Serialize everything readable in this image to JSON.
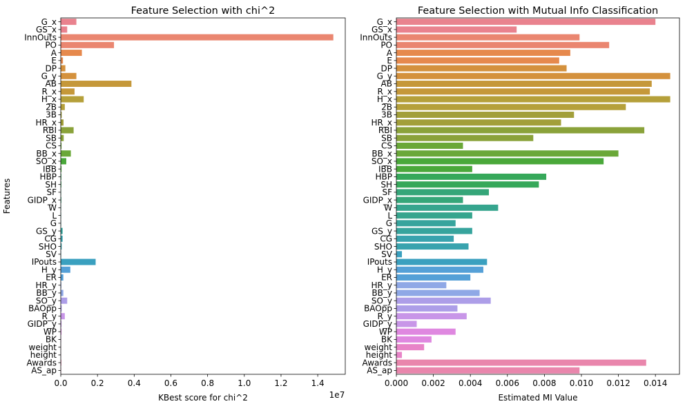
{
  "chart_data": [
    {
      "type": "bar",
      "orientation": "horizontal",
      "title": "Feature Selection with chi^2",
      "xlabel": "KBest score for chi^2",
      "ylabel": "Features",
      "x_offset_label": "1e7",
      "xlim": [
        0,
        1.55
      ],
      "x_ticks": [
        0.0,
        0.2,
        0.4,
        0.6,
        0.8,
        1.0,
        1.2,
        1.4
      ],
      "x_tick_labels": [
        "0.0",
        "0.2",
        "0.4",
        "0.6",
        "0.8",
        "1.0",
        "1.2",
        "1.4"
      ],
      "categories": [
        "G_x",
        "GS_x",
        "InnOuts",
        "PO",
        "A",
        "E",
        "DP",
        "G_y",
        "AB",
        "R_x",
        "H_x",
        "2B",
        "3B",
        "HR_x",
        "RBI",
        "SB",
        "CS",
        "BB_x",
        "SO_x",
        "IBB",
        "HBP",
        "SH",
        "SF",
        "GIDP_x",
        "W",
        "L",
        "G",
        "GS_y",
        "CG",
        "SHO",
        "SV",
        "IPouts",
        "H_y",
        "ER",
        "HR_y",
        "BB_y",
        "SO_y",
        "BAOpp",
        "R_y",
        "GIDP_y",
        "WP",
        "BK",
        "weight",
        "height",
        "Awards",
        "AS_ap"
      ],
      "values": [
        0.085,
        0.035,
        1.485,
        0.29,
        0.115,
        0.012,
        0.025,
        0.085,
        0.385,
        0.075,
        0.125,
        0.022,
        0.005,
        0.015,
        0.07,
        0.016,
        0.004,
        0.055,
        0.03,
        0.004,
        0.003,
        0.003,
        0.002,
        0.003,
        0.002,
        0.002,
        0.002,
        0.01,
        0.01,
        0.005,
        0.002,
        0.19,
        0.052,
        0.014,
        0.003,
        0.014,
        0.035,
        0.005,
        0.022,
        0.004,
        0.004,
        0.002,
        0.001,
        0.001,
        0.003,
        0.002
      ]
    },
    {
      "type": "bar",
      "orientation": "horizontal",
      "title": "Feature Selection with Mutual Info Classification",
      "xlabel": "Estimated MI Value",
      "ylabel": "",
      "xlim": [
        0,
        0.0153
      ],
      "x_ticks": [
        0.0,
        0.002,
        0.004,
        0.006,
        0.008,
        0.01,
        0.012,
        0.014
      ],
      "x_tick_labels": [
        "0.000",
        "0.002",
        "0.004",
        "0.006",
        "0.008",
        "0.010",
        "0.012",
        "0.014"
      ],
      "categories": [
        "G_x",
        "GS_x",
        "InnOuts",
        "PO",
        "A",
        "E",
        "DP",
        "G_y",
        "AB",
        "R_x",
        "H_x",
        "2B",
        "3B",
        "HR_x",
        "RBI",
        "SB",
        "CS",
        "BB_x",
        "SO_x",
        "IBB",
        "HBP",
        "SH",
        "SF",
        "GIDP_x",
        "W",
        "L",
        "G",
        "GS_y",
        "CG",
        "SHO",
        "SV",
        "IPouts",
        "H_y",
        "ER",
        "HR_y",
        "BB_y",
        "SO_y",
        "BAOpp",
        "R_y",
        "GIDP_y",
        "WP",
        "BK",
        "weight",
        "height",
        "Awards",
        "AS_ap"
      ],
      "values": [
        0.014,
        0.0065,
        0.0099,
        0.0115,
        0.0094,
        0.0088,
        0.0092,
        0.0148,
        0.0138,
        0.0137,
        0.0148,
        0.0124,
        0.0096,
        0.0089,
        0.0134,
        0.0074,
        0.0036,
        0.012,
        0.0112,
        0.0041,
        0.0081,
        0.0077,
        0.005,
        0.0036,
        0.0055,
        0.0041,
        0.0032,
        0.0041,
        0.0031,
        0.0039,
        0.0003,
        0.0049,
        0.0047,
        0.004,
        0.0027,
        0.0045,
        0.0051,
        0.0033,
        0.0038,
        0.0011,
        0.0032,
        0.0019,
        0.0015,
        0.0003,
        0.0135,
        0.0099
      ]
    }
  ],
  "colors": [
    "#e9828e",
    "#ea8670",
    "#e6894d",
    "#d4913d",
    "#c5983a",
    "#b5a03a",
    "#a29f3a",
    "#8aa23a",
    "#6aa838",
    "#4aa83a",
    "#36a85a",
    "#35a679",
    "#36a58e",
    "#37a49d",
    "#39a3ae",
    "#3aa0bf",
    "#55a0d7",
    "#8fa8e6",
    "#ad9ee8",
    "#c896e8",
    "#df88e0",
    "#e884c8",
    "#e986ac"
  ]
}
